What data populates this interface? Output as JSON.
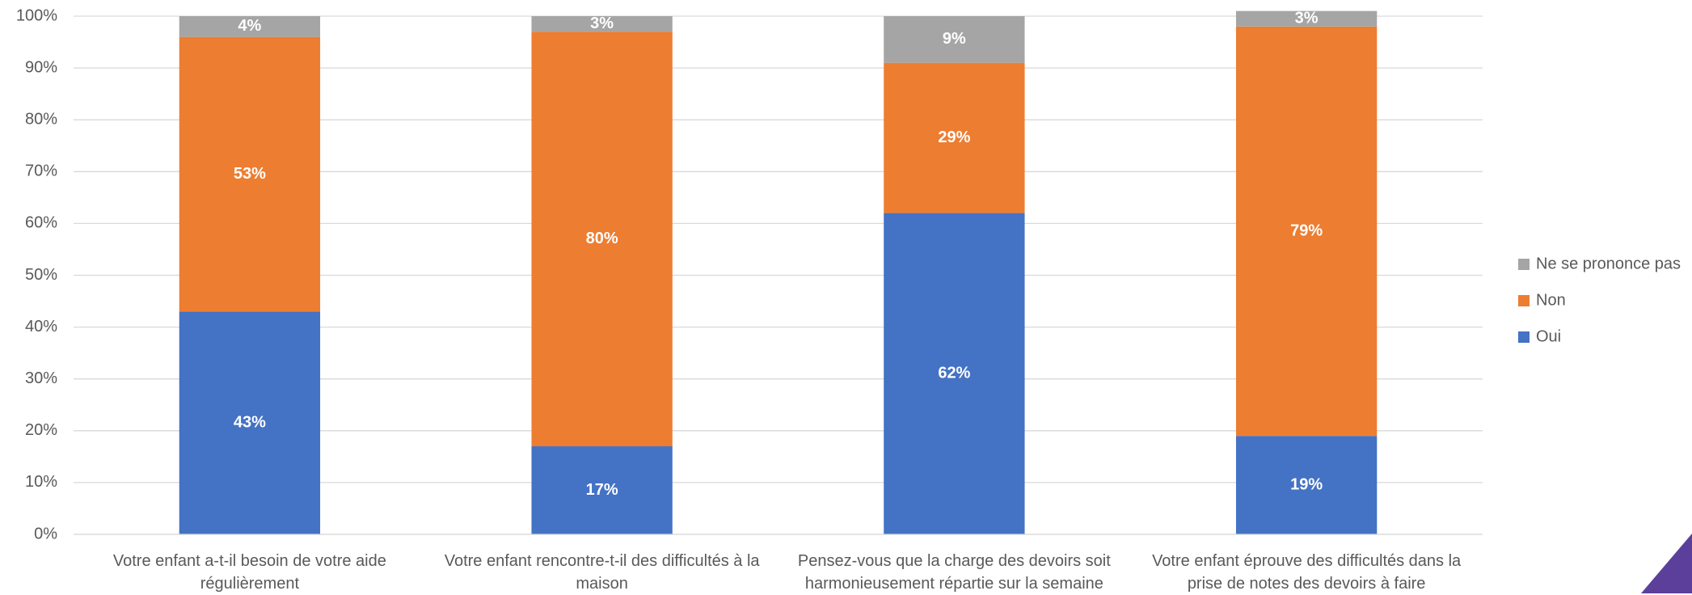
{
  "chart_data": {
    "type": "stacked_bar",
    "categories": [
      "Votre enfant a-t-il besoin de votre aide régulièrement",
      "Votre enfant rencontre-t-il des difficultés à la maison",
      "Pensez-vous que la charge des devoirs soit harmonieusement répartie sur la semaine",
      "Votre enfant éprouve des difficultés dans la prise de notes des devoirs à faire"
    ],
    "series": [
      {
        "name": "Oui",
        "color": "#4472c4",
        "values": [
          43,
          17,
          62,
          19
        ],
        "value_labels": [
          "43%",
          "17%",
          "62%",
          "19%"
        ]
      },
      {
        "name": "Non",
        "color": "#ed7d31",
        "values": [
          53,
          80,
          29,
          79
        ],
        "value_labels": [
          "53%",
          "80%",
          "29%",
          "79%"
        ]
      },
      {
        "name": "Ne se prononce pas",
        "color": "#a5a5a5",
        "values": [
          4,
          3,
          9,
          3
        ],
        "value_labels": [
          "4%",
          "3%",
          "9%",
          "3%"
        ]
      }
    ],
    "ylim": [
      0,
      100
    ],
    "yticks": [
      {
        "value": 0,
        "label": "0%"
      },
      {
        "value": 10,
        "label": "10%"
      },
      {
        "value": 20,
        "label": "20%"
      },
      {
        "value": 30,
        "label": "30%"
      },
      {
        "value": 40,
        "label": "40%"
      },
      {
        "value": 50,
        "label": "50%"
      },
      {
        "value": 60,
        "label": "60%"
      },
      {
        "value": 70,
        "label": "70%"
      },
      {
        "value": 80,
        "label": "80%"
      },
      {
        "value": 90,
        "label": "90%"
      },
      {
        "value": 100,
        "label": "100%"
      }
    ],
    "grid": true,
    "legend": "right"
  }
}
